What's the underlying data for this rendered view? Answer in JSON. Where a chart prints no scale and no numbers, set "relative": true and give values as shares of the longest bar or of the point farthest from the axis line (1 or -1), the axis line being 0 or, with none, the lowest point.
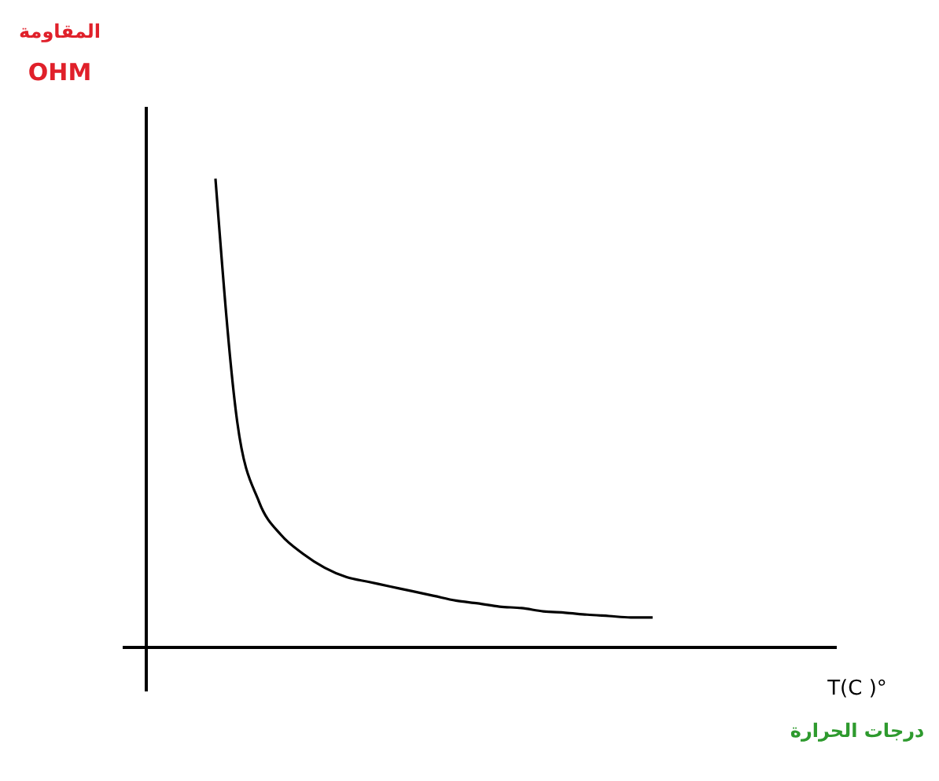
{
  "chart_data": {
    "type": "line",
    "relative": true,
    "ylabel": "OHM",
    "xlabel": "T(C )°",
    "annotations": [
      "المقاومة",
      "درجات الحرارة"
    ],
    "categories": [
      null,
      null,
      null,
      null,
      null,
      null,
      null,
      null,
      null,
      null,
      null,
      null,
      null,
      null,
      null,
      null,
      null,
      null,
      null,
      null,
      null,
      null,
      null,
      null,
      null,
      null,
      null,
      null,
      null,
      null,
      null,
      null,
      null
    ],
    "series": [
      {
        "color": "#000000",
        "values": [
          null,
          null,
          null,
          1.0,
          0.48,
          0.31,
          0.24,
          0.2,
          0.17,
          0.15,
          0.14,
          0.13,
          0.12,
          0.11,
          0.1,
          0.094,
          0.087,
          0.084,
          0.077,
          0.074,
          0.07,
          0.067,
          0.064,
          0.064,
          null,
          null,
          null,
          null,
          null,
          null,
          null,
          null,
          null
        ]
      }
    ],
    "marker": "none",
    "line_style": "solid"
  }
}
